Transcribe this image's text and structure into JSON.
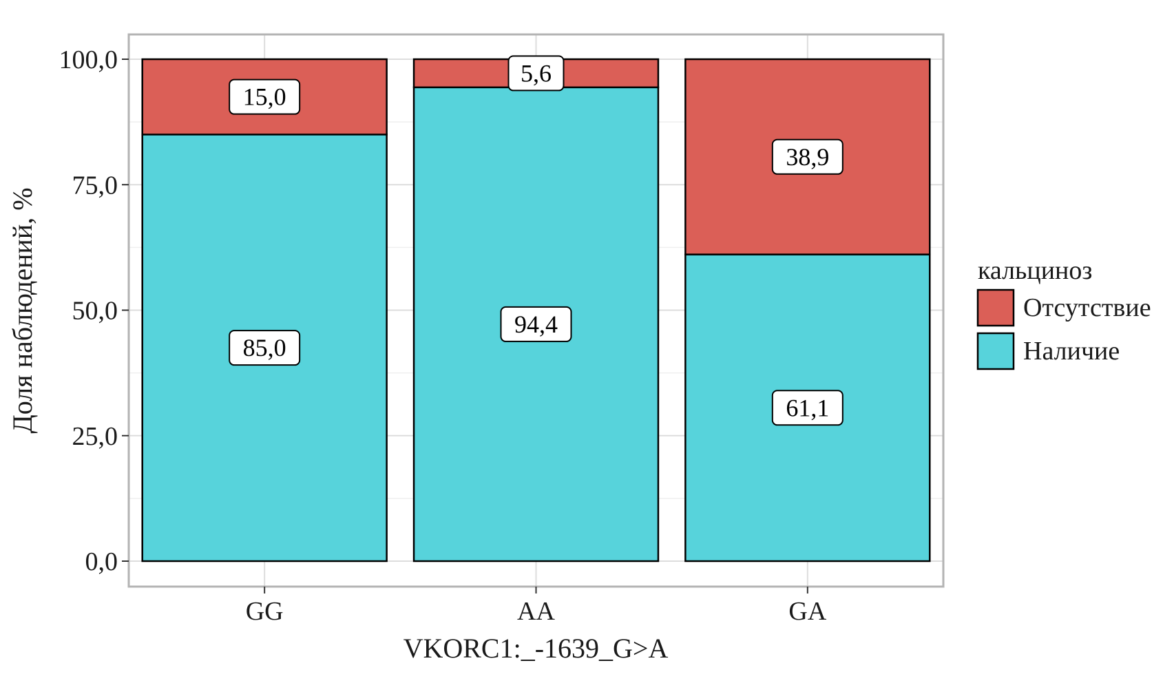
{
  "chart_data": {
    "type": "bar",
    "stacked": true,
    "categories": [
      "GG",
      "AA",
      "GA"
    ],
    "series": [
      {
        "name": "Наличие",
        "values": [
          85.0,
          94.4,
          61.1
        ],
        "labels": [
          "85,0",
          "94,4",
          "61,1"
        ],
        "color": "#57d3db"
      },
      {
        "name": "Отсутствие",
        "values": [
          15.0,
          5.6,
          38.9
        ],
        "labels": [
          "15,0",
          "5,6",
          "38,9"
        ],
        "color": "#db5f57"
      }
    ],
    "xlabel": "VKORC1:_-1639_G>A",
    "ylabel": "Доля наблюдений, %",
    "ylim": [
      0,
      100
    ],
    "yticks": [
      0,
      25,
      50,
      75,
      100
    ],
    "ytick_labels": [
      "0,0",
      "25,0",
      "50,0",
      "75,0",
      "100,0"
    ],
    "grid": true,
    "legend": {
      "title": "кальциноз",
      "placement": "right",
      "entries": [
        {
          "label": "Отсутствие",
          "color": "#db5f57"
        },
        {
          "label": "Наличие",
          "color": "#57d3db"
        }
      ]
    }
  }
}
